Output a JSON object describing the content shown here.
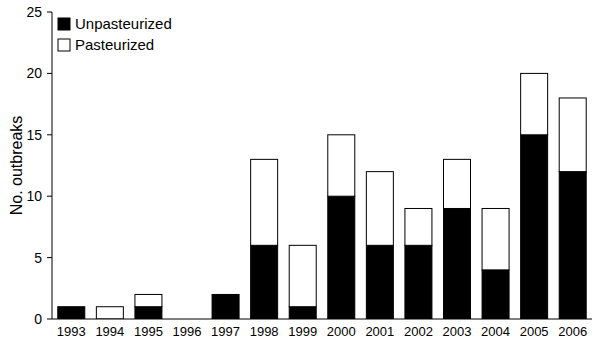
{
  "chart_data": {
    "type": "bar",
    "stacked": true,
    "y_label": "No. outbreaks",
    "categories": [
      "1993",
      "1994",
      "1995",
      "1996",
      "1997",
      "1998",
      "1999",
      "2000",
      "2001",
      "2002",
      "2003",
      "2004",
      "2005",
      "2006"
    ],
    "series": [
      {
        "name": "Unpasteurized",
        "color": "#000000",
        "values": [
          1,
          0,
          1,
          0,
          2,
          6,
          1,
          10,
          6,
          6,
          9,
          4,
          15,
          12
        ]
      },
      {
        "name": "Pasteurized",
        "color": "#ffffff",
        "values": [
          0,
          1,
          1,
          0,
          0,
          7,
          5,
          5,
          6,
          3,
          4,
          5,
          5,
          6
        ]
      }
    ],
    "ylim": [
      0,
      25
    ],
    "yticks": [
      0,
      5,
      10,
      15,
      20,
      25
    ],
    "grid": false,
    "legend": "top-left"
  }
}
